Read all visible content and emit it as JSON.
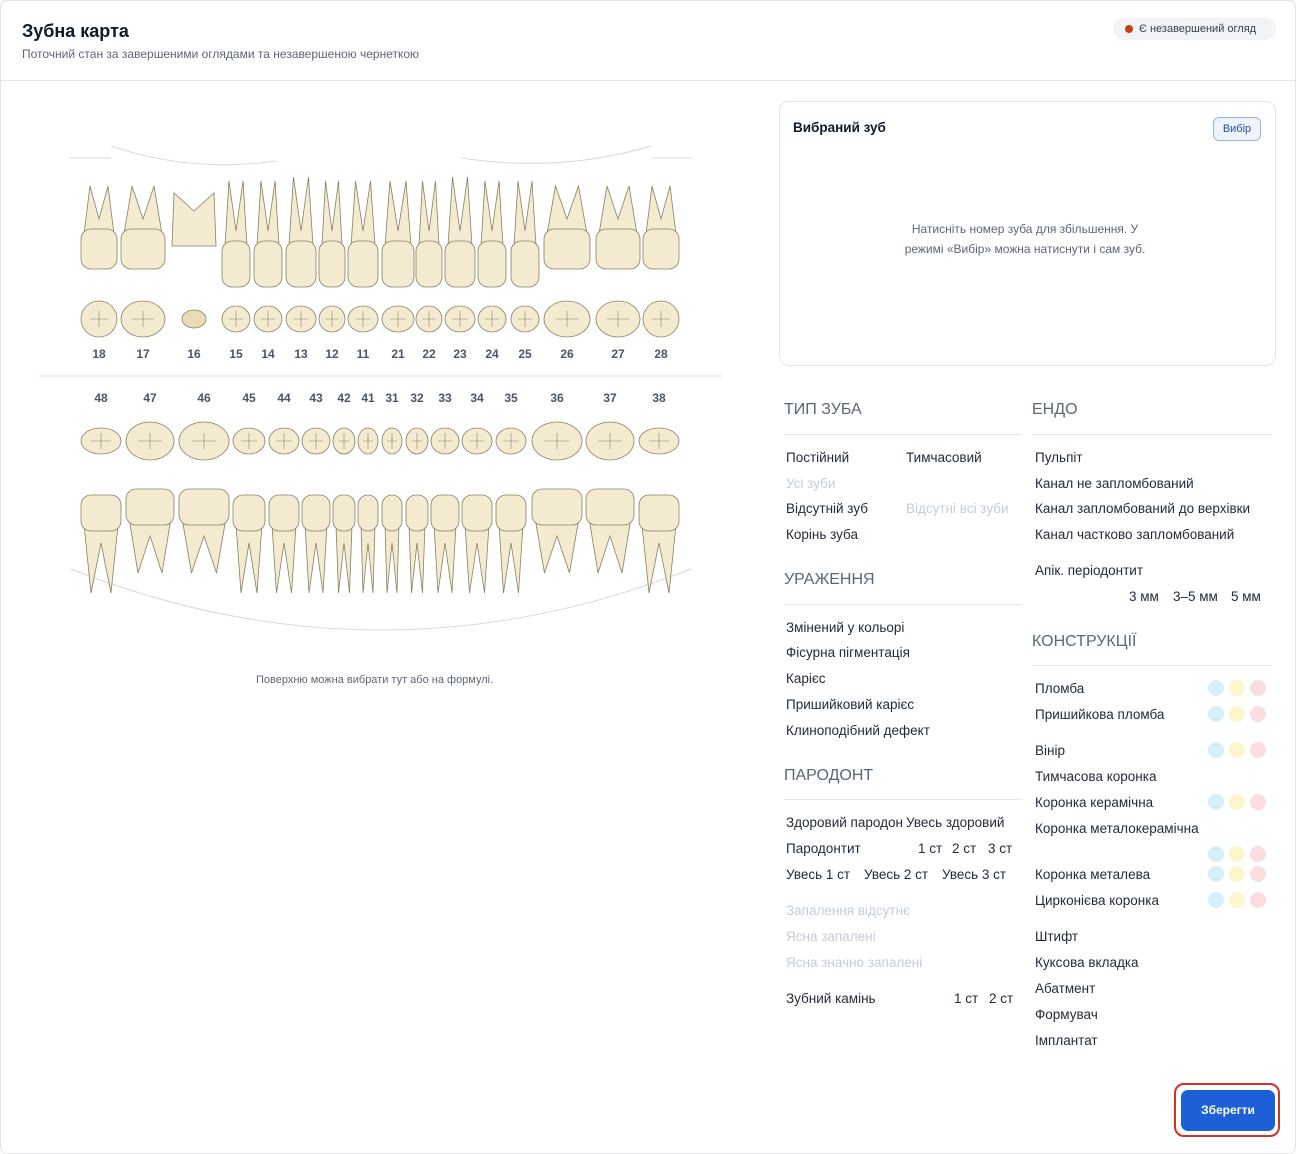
{
  "header": {
    "title": "Зубна карта",
    "subtitle": "Поточний стан за завершеними оглядами та незавершеною чернеткою",
    "badge": "Є незавершений огляд"
  },
  "dental_chart": {
    "upper_teeth": [
      "18",
      "17",
      "16",
      "15",
      "14",
      "13",
      "12",
      "11",
      "21",
      "22",
      "23",
      "24",
      "25",
      "26",
      "27",
      "28"
    ],
    "lower_teeth": [
      "48",
      "47",
      "46",
      "45",
      "44",
      "43",
      "42",
      "41",
      "31",
      "32",
      "33",
      "34",
      "35",
      "36",
      "37",
      "38"
    ],
    "hint": "Поверхню можна вибрати тут або на формулі."
  },
  "selected_tooth": {
    "title": "Вибраний зуб",
    "button": "Вибір",
    "placeholder": "Натисніть номер зуба для збільшення. У режимі «Вибір» можна натиснути і сам зуб."
  },
  "tooth_type": {
    "heading": "ТИП ЗУБА",
    "items": [
      "Постійний",
      "Тимчасовий",
      "Усі зуби",
      "Відсутній зуб",
      "Відсутні всі зуби",
      "Корінь зуба"
    ]
  },
  "lesions": {
    "heading": "УРАЖЕННЯ",
    "items": [
      "Змінений у кольорі",
      "Фісурна пігментація",
      "Карієс",
      "Пришийковий карієс",
      "Клиноподібний дефект"
    ]
  },
  "periodontium": {
    "heading": "ПАРОДОНТ",
    "items": [
      "Здоровий пародонт",
      "Увесь здоровий",
      "Пародонтит",
      "1 ст",
      "2 ст",
      "3 ст",
      "Увесь 1 ст",
      "Увесь 2 ст",
      "Увесь 3 ст",
      "Запалення відсутнє",
      "Ясна запалені",
      "Ясна значно запалені",
      "Зубний камінь",
      "1 ст",
      "2 ст"
    ]
  },
  "endo": {
    "heading": "ЕНДО",
    "items": [
      "Пульпіт",
      "Канал не запломбований",
      "Канал запломбований до верхівки",
      "Канал частково запломбований",
      "Апік. періодонтит",
      "3 мм",
      "3–5 мм",
      "5 мм"
    ]
  },
  "constructions": {
    "heading": "КОНСТРУКЦІЇ",
    "items": [
      "Пломба",
      "Пришийкова пломба",
      "Вінір",
      "Тимчасова коронка",
      "Коронка керамічна",
      "Коронка металокерамічна",
      "Коронка металева",
      "Цирконієва коронка",
      "Штифт",
      "Куксова вкладка",
      "Абатмент",
      "Формувач",
      "Імплантат"
    ]
  },
  "save_button": "Зберегти"
}
